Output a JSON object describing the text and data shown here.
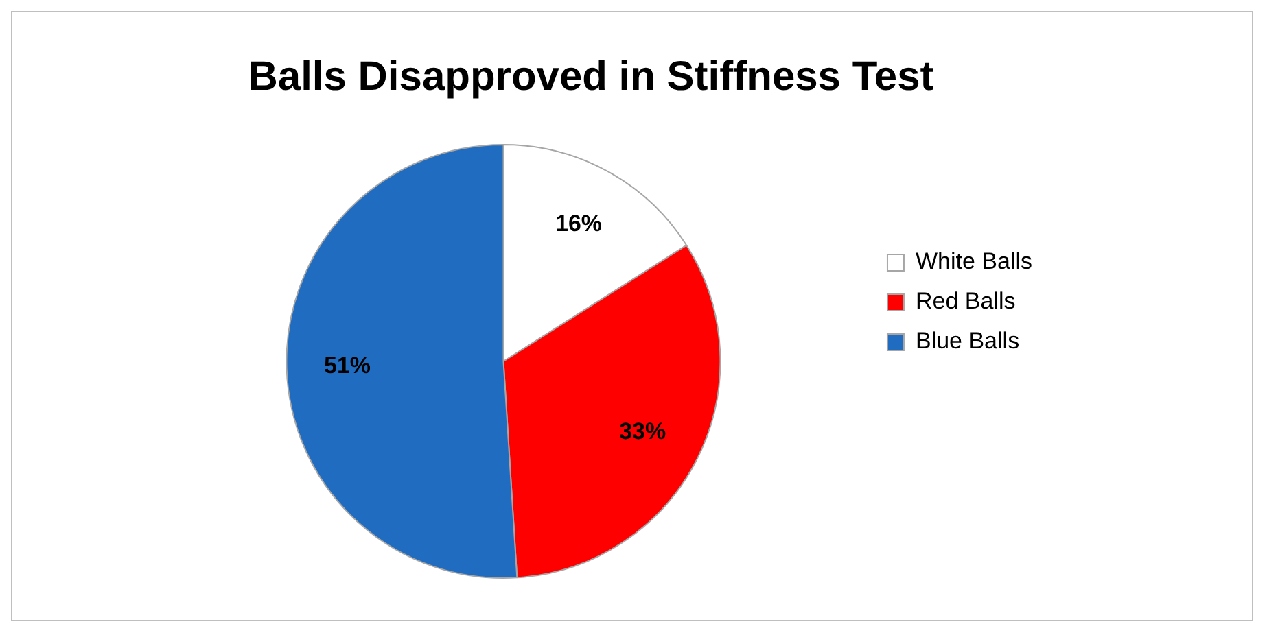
{
  "chart_data": {
    "type": "pie",
    "title": "Balls Disapproved in Stiffness Test",
    "categories": [
      "White Balls",
      "Red Balls",
      "Blue Balls"
    ],
    "values": [
      16,
      33,
      51
    ],
    "colors": [
      "#ffffff",
      "#ff0000",
      "#1f6cc0"
    ],
    "value_labels": [
      "16%",
      "33%",
      "51%"
    ],
    "legend": "right"
  }
}
